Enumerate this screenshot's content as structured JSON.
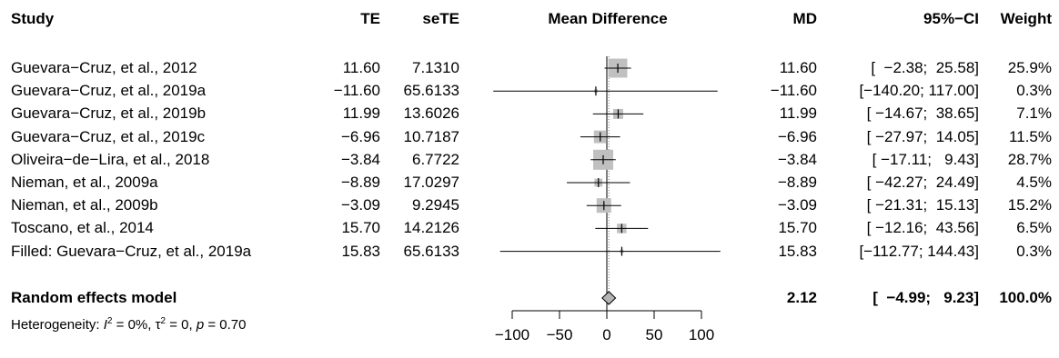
{
  "headers": {
    "study": "Study",
    "te": "TE",
    "sete": "seTE",
    "plot": "Mean Difference",
    "md": "MD",
    "ci": "95%−CI",
    "weight": "Weight"
  },
  "rows": [
    {
      "study": "Guevara−Cruz, et al., 2012",
      "te": "11.60",
      "sete": "7.1310",
      "md": "11.60",
      "ci": "[  −2.38;  25.58]",
      "weight": "25.9%"
    },
    {
      "study": "Guevara−Cruz, et al., 2019a",
      "te": "−11.60",
      "sete": "65.6133",
      "md": "−11.60",
      "ci": "[−140.20; 117.00]",
      "weight": "0.3%"
    },
    {
      "study": "Guevara−Cruz, et al., 2019b",
      "te": "11.99",
      "sete": "13.6026",
      "md": "11.99",
      "ci": "[ −14.67;  38.65]",
      "weight": "7.1%"
    },
    {
      "study": "Guevara−Cruz, et al., 2019c",
      "te": "−6.96",
      "sete": "10.7187",
      "md": "−6.96",
      "ci": "[ −27.97;  14.05]",
      "weight": "11.5%"
    },
    {
      "study": "Oliveira−de−Lira, et al., 2018",
      "te": "−3.84",
      "sete": "6.7722",
      "md": "−3.84",
      "ci": "[ −17.11;   9.43]",
      "weight": "28.7%"
    },
    {
      "study": "Nieman, et al., 2009a",
      "te": "−8.89",
      "sete": "17.0297",
      "md": "−8.89",
      "ci": "[ −42.27;  24.49]",
      "weight": "4.5%"
    },
    {
      "study": "Nieman, et al., 2009b",
      "te": "−3.09",
      "sete": "9.2945",
      "md": "−3.09",
      "ci": "[ −21.31;  15.13]",
      "weight": "15.2%"
    },
    {
      "study": "Toscano, et al., 2014",
      "te": "15.70",
      "sete": "14.2126",
      "md": "15.70",
      "ci": "[ −12.16;  43.56]",
      "weight": "6.5%"
    },
    {
      "study": "Filled: Guevara−Cruz, et al., 2019a",
      "te": "15.83",
      "sete": "65.6133",
      "md": "15.83",
      "ci": "[−112.77; 144.43]",
      "weight": "0.3%"
    }
  ],
  "summary": {
    "label": "Random effects model",
    "md": "2.12",
    "ci": "[  −4.99;   9.23]",
    "weight": "100.0%"
  },
  "heterogeneity": {
    "prefix": "Heterogeneity: ",
    "i2_sym": "I",
    "i2_val": " = 0%, ",
    "tau_sym": "τ",
    "tau_val": " = 0, ",
    "p_sym": "p",
    "p_val": " = 0.70",
    "sup": "2"
  },
  "chart_data": {
    "type": "forest",
    "xlabel": "",
    "xlim": [
      -100,
      100
    ],
    "xticks": [
      -100,
      -50,
      0,
      50,
      100
    ],
    "xtick_labels": [
      "−100",
      "−50",
      "0",
      "50",
      "100"
    ],
    "clip_range": [
      -120,
      120
    ],
    "estimates": [
      {
        "study": "Guevara−Cruz, et al., 2012",
        "md": 11.6,
        "lower": -2.38,
        "upper": 25.58,
        "weight": 25.9
      },
      {
        "study": "Guevara−Cruz, et al., 2019a",
        "md": -11.6,
        "lower": -140.2,
        "upper": 117.0,
        "weight": 0.3
      },
      {
        "study": "Guevara−Cruz, et al., 2019b",
        "md": 11.99,
        "lower": -14.67,
        "upper": 38.65,
        "weight": 7.1
      },
      {
        "study": "Guevara−Cruz, et al., 2019c",
        "md": -6.96,
        "lower": -27.97,
        "upper": 14.05,
        "weight": 11.5
      },
      {
        "study": "Oliveira−de−Lira, et al., 2018",
        "md": -3.84,
        "lower": -17.11,
        "upper": 9.43,
        "weight": 28.7
      },
      {
        "study": "Nieman, et al., 2009a",
        "md": -8.89,
        "lower": -42.27,
        "upper": 24.49,
        "weight": 4.5
      },
      {
        "study": "Nieman, et al., 2009b",
        "md": -3.09,
        "lower": -21.31,
        "upper": 15.13,
        "weight": 15.2
      },
      {
        "study": "Toscano, et al., 2014",
        "md": 15.7,
        "lower": -12.16,
        "upper": 43.56,
        "weight": 6.5
      },
      {
        "study": "Filled: Guevara−Cruz, et al., 2019a",
        "md": 15.83,
        "lower": -112.77,
        "upper": 144.43,
        "weight": 0.3
      }
    ],
    "pooled": {
      "label": "Random effects model",
      "md": 2.12,
      "lower": -4.99,
      "upper": 9.23
    },
    "colors": {
      "square": "#c0c0c0",
      "line": "#000000",
      "diamond": "#b4b4b4"
    }
  }
}
